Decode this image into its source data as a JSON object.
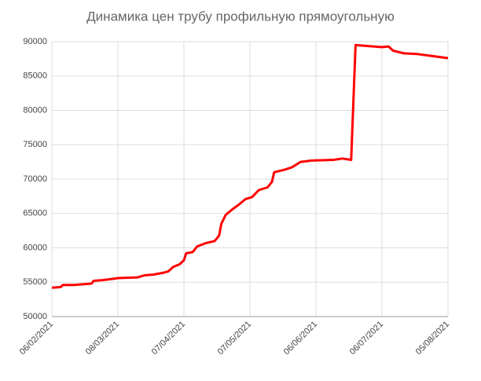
{
  "chart_data": {
    "type": "line",
    "title": "Динамика цен трубу профильную прямоугольную",
    "x": [
      "06/02/2021",
      "10/02/2021",
      "11/02/2021",
      "16/02/2021",
      "24/02/2021",
      "25/02/2021",
      "01/03/2021",
      "06/03/2021",
      "08/03/2021",
      "17/03/2021",
      "20/03/2021",
      "24/03/2021",
      "29/03/2021",
      "31/03/2021",
      "02/04/2021",
      "05/04/2021",
      "07/04/2021",
      "08/04/2021",
      "11/04/2021",
      "13/04/2021",
      "17/04/2021",
      "21/04/2021",
      "23/04/2021",
      "24/04/2021",
      "26/04/2021",
      "29/04/2021",
      "02/05/2021",
      "05/05/2021",
      "08/05/2021",
      "11/05/2021",
      "15/05/2021",
      "17/05/2021",
      "18/05/2021",
      "23/05/2021",
      "26/05/2021",
      "30/05/2021",
      "04/06/2021",
      "14/06/2021",
      "18/06/2021",
      "22/06/2021",
      "24/06/2021",
      "28/06/2021",
      "06/07/2021",
      "09/07/2021",
      "11/07/2021",
      "16/07/2021",
      "22/07/2021",
      "29/07/2021",
      "05/08/2021"
    ],
    "values": [
      54200,
      54300,
      54600,
      54600,
      54800,
      55200,
      55300,
      55500,
      55600,
      55700,
      56000,
      56100,
      56400,
      56600,
      57200,
      57600,
      58200,
      59200,
      59400,
      60200,
      60700,
      61000,
      61800,
      63500,
      64800,
      65600,
      66300,
      67100,
      67400,
      68400,
      68800,
      69600,
      71000,
      71400,
      71700,
      72500,
      72700,
      72800,
      73000,
      72800,
      89500,
      89400,
      89200,
      89300,
      88700,
      88300,
      88200,
      87900,
      87600
    ],
    "color": "#ff0000",
    "xlim": [
      "06/02/2021",
      "05/08/2021"
    ],
    "xticks": [
      "06/02/2021",
      "08/03/2021",
      "07/04/2021",
      "07/05/2021",
      "06/06/2021",
      "06/07/2021",
      "05/08/2021"
    ],
    "ylim": [
      50000,
      90000
    ],
    "yticks": [
      50000,
      55000,
      60000,
      65000,
      70000,
      75000,
      80000,
      85000,
      90000
    ],
    "grid": true
  }
}
